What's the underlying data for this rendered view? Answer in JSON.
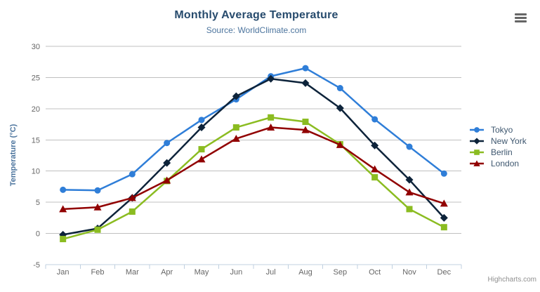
{
  "chart_data": {
    "type": "line",
    "title": "Monthly Average Temperature",
    "subtitle": "Source: WorldClimate.com",
    "xlabel": "",
    "ylabel": "Temperature (°C)",
    "categories": [
      "Jan",
      "Feb",
      "Mar",
      "Apr",
      "May",
      "Jun",
      "Jul",
      "Aug",
      "Sep",
      "Oct",
      "Nov",
      "Dec"
    ],
    "ylim": [
      -5,
      30
    ],
    "yticks": [
      -5,
      0,
      5,
      10,
      15,
      20,
      25,
      30
    ],
    "grid": true,
    "legend_position": "right",
    "series": [
      {
        "name": "Tokyo",
        "color": "#2f7ed8",
        "marker": "circle",
        "values": [
          7.0,
          6.9,
          9.5,
          14.5,
          18.2,
          21.5,
          25.2,
          26.5,
          23.3,
          18.3,
          13.9,
          9.6
        ]
      },
      {
        "name": "New York",
        "color": "#0d233a",
        "marker": "diamond",
        "values": [
          -0.2,
          0.8,
          5.7,
          11.3,
          17.0,
          22.0,
          24.8,
          24.1,
          20.1,
          14.1,
          8.6,
          2.5
        ]
      },
      {
        "name": "Berlin",
        "color": "#8bbc21",
        "marker": "square",
        "values": [
          -0.9,
          0.6,
          3.5,
          8.4,
          13.5,
          17.0,
          18.6,
          17.9,
          14.3,
          9.0,
          3.9,
          1.0
        ]
      },
      {
        "name": "London",
        "color": "#910000",
        "marker": "triangle",
        "values": [
          3.9,
          4.2,
          5.7,
          8.5,
          11.9,
          15.2,
          17.0,
          16.6,
          14.2,
          10.3,
          6.6,
          4.8
        ]
      }
    ]
  },
  "colors": {
    "title": "#274b6d",
    "subtitle": "#4d759e",
    "axis_label": "#666666",
    "axis_title": "#4d759e",
    "grid": "#c0c0c0",
    "axis_line": "#c0d0e0",
    "legend_text": "#3e576f",
    "credits": "#909090",
    "menu_icon": "#666666"
  },
  "credits": {
    "label": "Highcharts.com"
  },
  "menu": {
    "icon": "hamburger-icon"
  }
}
